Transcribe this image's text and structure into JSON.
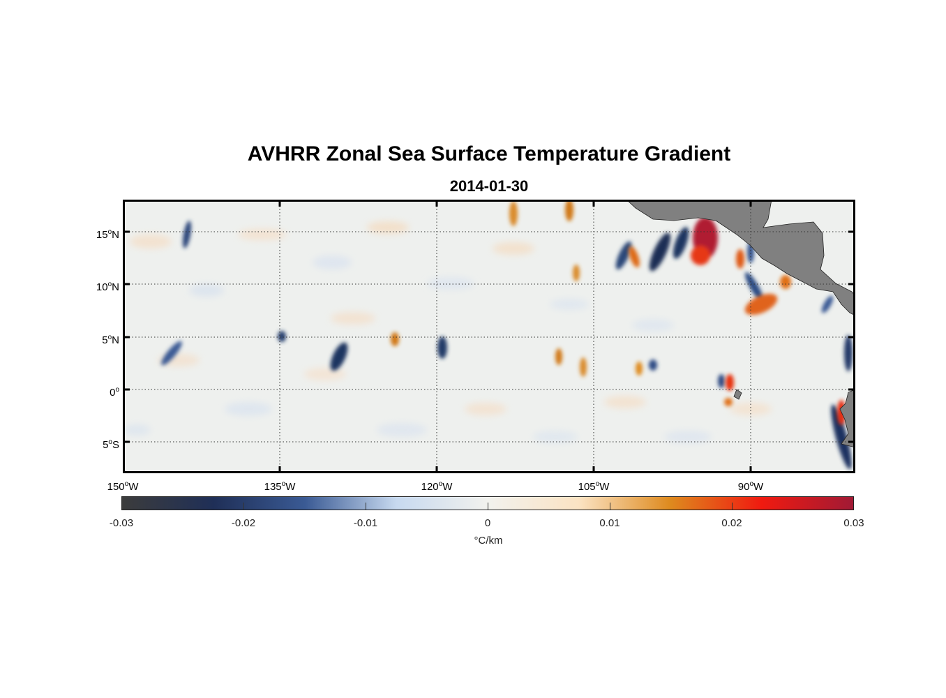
{
  "title": "AVHRR Zonal Sea Surface Temperature Gradient",
  "subtitle": "2014-01-30",
  "map": {
    "lat_labels": [
      {
        "deg": "15",
        "hem": "N"
      },
      {
        "deg": "10",
        "hem": "N"
      },
      {
        "deg": "5",
        "hem": "N"
      },
      {
        "deg": "0",
        "hem": ""
      },
      {
        "deg": "5",
        "hem": "S"
      }
    ],
    "lon_labels": [
      {
        "deg": "150",
        "hem": "W"
      },
      {
        "deg": "135",
        "hem": "W"
      },
      {
        "deg": "120",
        "hem": "W"
      },
      {
        "deg": "105",
        "hem": "W"
      },
      {
        "deg": "90",
        "hem": "W"
      }
    ],
    "lat_range": [
      -8,
      18
    ],
    "lon_range": [
      -150,
      -80
    ],
    "gridlines": "dotted",
    "land_color": "#808080",
    "ocean_background": "#eef0ee"
  },
  "colorbar": {
    "tick_labels": [
      "-0.03",
      "-0.02",
      "-0.01",
      "0",
      "0.01",
      "0.02",
      "0.03"
    ],
    "units": "°C/km",
    "range": [
      -0.03,
      0.03
    ],
    "colors": [
      "#3c3c3c",
      "#1f2f57",
      "#3a5a94",
      "#c7d9ef",
      "#f2f2ee",
      "#fbe3c3",
      "#de8a1e",
      "#f01a10",
      "#a11a35"
    ]
  }
}
